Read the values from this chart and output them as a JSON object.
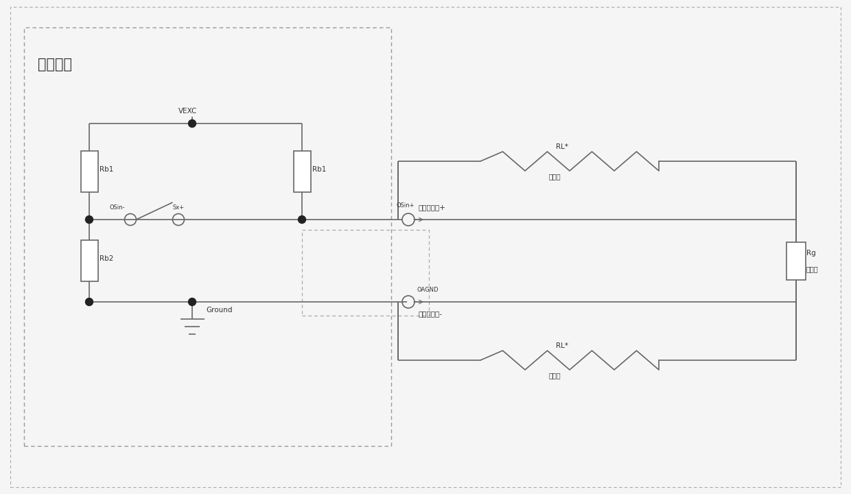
{
  "bg_color": "#f5f5f5",
  "line_color": "#666666",
  "text_color": "#333333",
  "inner_box_label": "内部电路",
  "vexc_label": "VEXC",
  "rb1_label": "Rb1",
  "rb1b_label": "Rb1",
  "rb2_label": "Rb2",
  "sm_out_label": "OSin-",
  "sp_label": "Sx+",
  "sout_label": "OSin+",
  "agnd_label": "OAGND",
  "ground_label": "Ground",
  "sensor_plus_label": "传感器输入+",
  "sensor_minus_label": "传感器输入-",
  "rl_plus_label": "RL*",
  "rl_minus_label": "RL*",
  "damping_plus_label": "阻尼阔",
  "damping_minus_label": "阻尼阔",
  "rg_label": "Rg",
  "strain_label": "应变片",
  "fig_width": 12.4,
  "fig_height": 7.2
}
